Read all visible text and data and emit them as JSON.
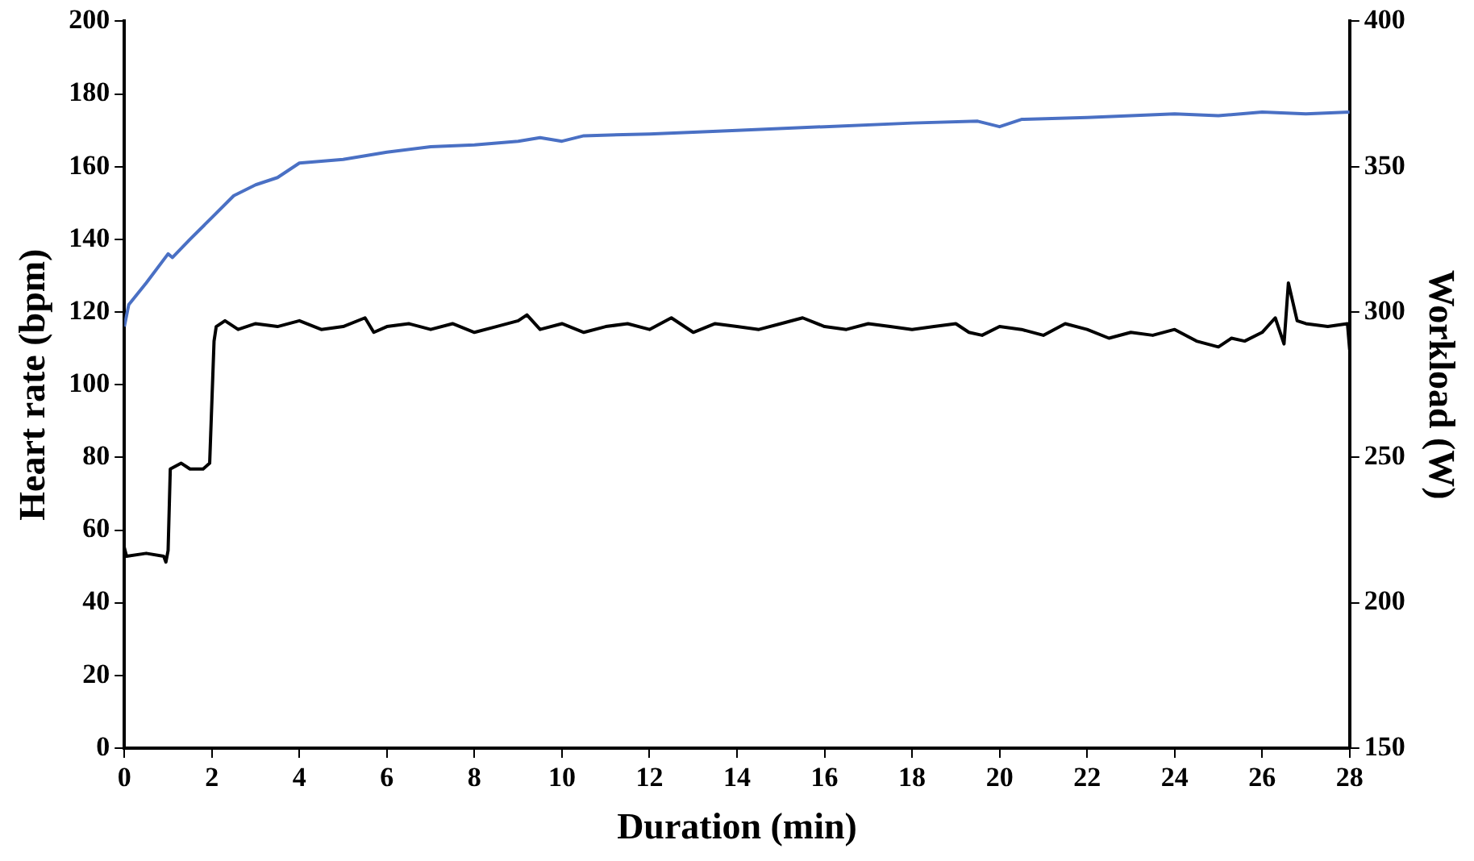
{
  "chart_data": {
    "type": "line",
    "xlabel": "Duration (min)",
    "ylabel": "Heart rate (bpm)",
    "y2label": "Workload (W)",
    "xlim": [
      0,
      28
    ],
    "xticks": [
      0,
      2,
      4,
      6,
      8,
      10,
      12,
      14,
      16,
      18,
      20,
      22,
      24,
      26,
      28
    ],
    "ylim": [
      0,
      200
    ],
    "yticks": [
      0,
      20,
      40,
      60,
      80,
      100,
      120,
      140,
      160,
      180,
      200
    ],
    "y2lim": [
      150,
      400
    ],
    "y2ticks": [
      150,
      200,
      250,
      300,
      350,
      400
    ],
    "grid": false,
    "legend": false,
    "marker": "none",
    "line_style": "solid",
    "series": [
      {
        "color": "#4a70c4",
        "x": [
          0,
          0.1,
          0.5,
          1,
          1.1,
          1.5,
          2,
          2.5,
          3,
          3.5,
          4,
          5,
          6,
          7,
          8,
          9,
          9.5,
          10,
          10.5,
          12,
          14,
          16,
          18,
          19.5,
          20,
          20.5,
          22,
          24,
          25,
          26,
          27,
          28
        ],
        "values": [
          116,
          122,
          128,
          136,
          135,
          140,
          146,
          152,
          155,
          157,
          161,
          162,
          164,
          165.5,
          166,
          167,
          168,
          167,
          168.5,
          169,
          170,
          171,
          172,
          172.5,
          171,
          173,
          173.5,
          174.5,
          174,
          175,
          174.5,
          175
        ]
      },
      {
        "color": "#000000",
        "axis": "y2",
        "x": [
          0,
          0.05,
          0.5,
          0.9,
          0.95,
          1,
          1.05,
          1.3,
          1.5,
          1.8,
          1.95,
          2.05,
          2.1,
          2.3,
          2.6,
          3,
          3.5,
          4,
          4.5,
          5,
          5.5,
          5.7,
          6,
          6.5,
          7,
          7.5,
          8,
          8.5,
          9,
          9.2,
          9.5,
          10,
          10.5,
          11,
          11.5,
          12,
          12.5,
          13,
          13.5,
          14,
          14.5,
          15,
          15.5,
          16,
          16.5,
          17,
          17.5,
          18,
          18.5,
          19,
          19.3,
          19.6,
          20,
          20.5,
          21,
          21.5,
          22,
          22.5,
          23,
          23.5,
          24,
          24.5,
          25,
          25.3,
          25.6,
          26,
          26.3,
          26.5,
          26.6,
          26.8,
          27,
          27.5,
          27.95,
          28
        ],
        "values": [
          219,
          216,
          217,
          216,
          214,
          218,
          246,
          248,
          246,
          246,
          248,
          290,
          295,
          297,
          294,
          296,
          295,
          297,
          294,
          295,
          298,
          293,
          295,
          296,
          294,
          296,
          293,
          295,
          297,
          299,
          294,
          296,
          293,
          295,
          296,
          294,
          298,
          293,
          296,
          295,
          294,
          296,
          298,
          295,
          294,
          296,
          295,
          294,
          295,
          296,
          293,
          292,
          295,
          294,
          292,
          296,
          294,
          291,
          293,
          292,
          294,
          290,
          288,
          291,
          290,
          293,
          298,
          289,
          310,
          297,
          296,
          295,
          296,
          287
        ]
      }
    ]
  }
}
